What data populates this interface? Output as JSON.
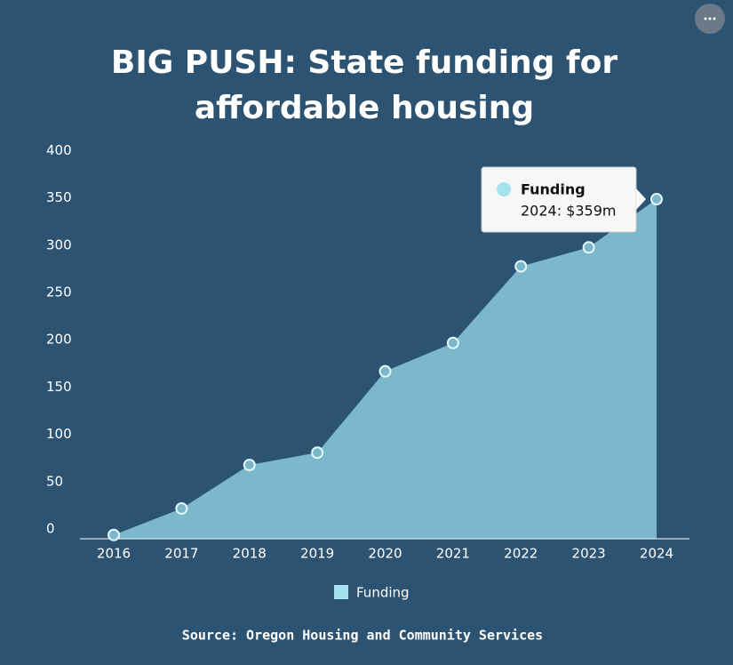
{
  "chart_data": {
    "type": "area",
    "title": [
      "BIG PUSH: State funding for",
      "affordable housing"
    ],
    "categories": [
      "2016",
      "2017",
      "2018",
      "2019",
      "2020",
      "2021",
      "2022",
      "2023",
      "2024"
    ],
    "series": [
      {
        "name": "Funding",
        "color": "#7bb8cb",
        "marker_color": "#a4e2ef",
        "values": [
          4,
          32,
          78,
          91,
          177,
          207,
          288,
          308,
          359
        ]
      }
    ],
    "ylim": [
      0,
      400
    ],
    "yticks": [
      0,
      50,
      100,
      150,
      200,
      250,
      300,
      350,
      400
    ],
    "tooltip": {
      "title": "Funding",
      "text": "2024: $359m"
    },
    "source": "Source: Oregon Housing and Community Services"
  }
}
